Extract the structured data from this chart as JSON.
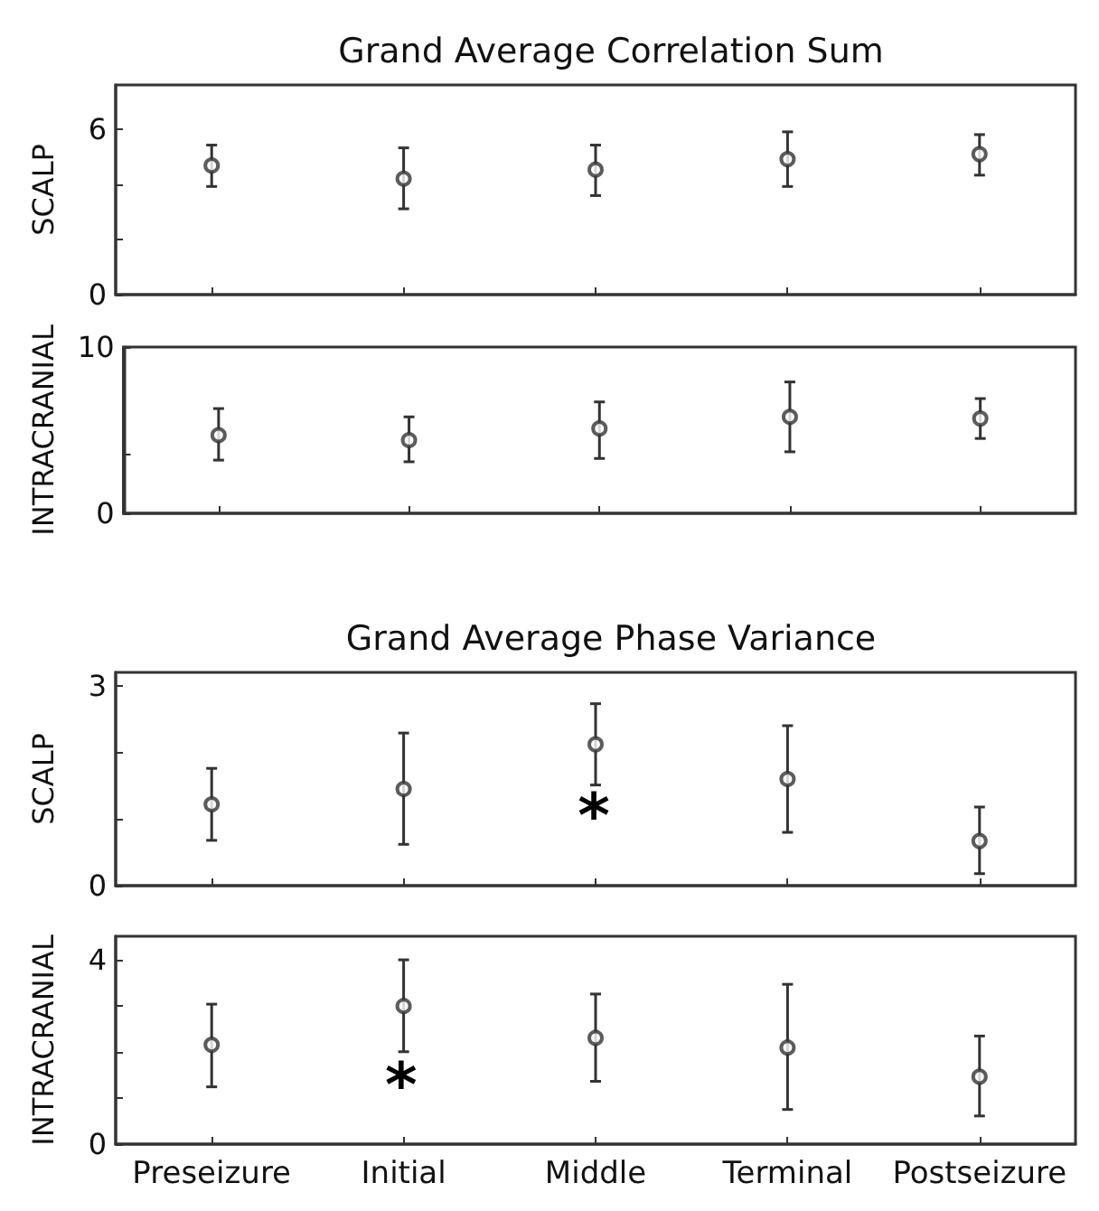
{
  "chart_data": [
    {
      "type": "scatter",
      "title": "Grand Average Correlation Sum",
      "ylabel": "SCALP",
      "categories": [
        null,
        null,
        null,
        null,
        null
      ],
      "marker": "circle",
      "tick_labels": "y",
      "ylim": [
        0,
        7.6
      ],
      "yticks": [
        0,
        {
          "value": 2,
          "label": null
        },
        {
          "value": 4,
          "label": null
        },
        6
      ],
      "series": [
        {
          "color": "#333333",
          "values": [
            4.68,
            4.2,
            4.53,
            4.91,
            5.09
          ],
          "errors": [
            [
              3.92,
              5.42
            ],
            [
              3.11,
              5.32
            ],
            [
              3.59,
              5.42
            ],
            [
              3.92,
              5.9
            ],
            [
              4.33,
              5.8
            ]
          ]
        }
      ]
    },
    {
      "type": "scatter",
      "ylabel": "INTRACRANIAL",
      "categories": [
        null,
        null,
        null,
        null,
        null
      ],
      "marker": "circle",
      "tick_labels": "y",
      "ylim": [
        0,
        10
      ],
      "yticks": [
        0,
        {
          "value": 3.6,
          "label": null
        },
        10
      ],
      "series": [
        {
          "color": "#333333",
          "values": [
            4.7,
            4.4,
            5.1,
            5.8,
            5.7
          ],
          "errors": [
            [
              3.2,
              6.3
            ],
            [
              3.1,
              5.8
            ],
            [
              3.3,
              6.7
            ],
            [
              3.7,
              7.9
            ],
            [
              4.5,
              6.9
            ]
          ]
        }
      ]
    },
    {
      "type": "scatter",
      "title": "Grand Average Phase Variance",
      "ylabel": "SCALP",
      "categories": [
        null,
        null,
        null,
        null,
        null
      ],
      "marker": "circle",
      "tick_labels": "y",
      "ylim": [
        0,
        3.2
      ],
      "yticks": [
        0,
        {
          "value": 1,
          "label": null
        },
        {
          "value": 2,
          "label": null
        },
        3
      ],
      "annotations": [
        "*"
      ],
      "series": [
        {
          "color": "#333333",
          "values": [
            1.22,
            1.45,
            2.12,
            1.6,
            0.67
          ],
          "errors": [
            [
              0.68,
              1.76
            ],
            [
              0.62,
              2.29
            ],
            [
              1.51,
              2.73
            ],
            [
              0.8,
              2.4
            ],
            [
              0.18,
              1.18
            ]
          ]
        }
      ]
    },
    {
      "type": "scatter",
      "ylabel": "INTRACRANIAL",
      "categories": [
        "Preseizure",
        "Initial",
        "Middle",
        "Terminal",
        "Postseizure"
      ],
      "marker": "circle",
      "ylim": [
        0,
        4.5
      ],
      "yticks": [
        0,
        {
          "value": 1,
          "label": null
        },
        {
          "value": 2,
          "label": null
        },
        {
          "value": 3,
          "label": null
        },
        4
      ],
      "annotations": [
        "*"
      ],
      "series": [
        {
          "color": "#333333",
          "values": [
            2.15,
            2.99,
            2.3,
            2.09,
            1.46
          ],
          "errors": [
            [
              1.24,
              3.03
            ],
            [
              2.0,
              3.99
            ],
            [
              1.36,
              3.25
            ],
            [
              0.75,
              3.46
            ],
            [
              0.61,
              2.34
            ]
          ]
        }
      ]
    }
  ]
}
